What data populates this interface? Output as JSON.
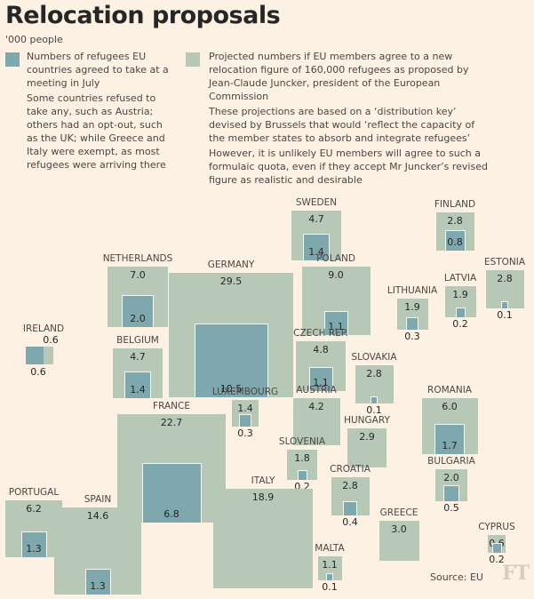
{
  "title": "Relocation proposals",
  "unit": "'000 people",
  "colors": {
    "background": "#fdf1e4",
    "agreed": "#7ea8ad",
    "projected": "#b8c8b7"
  },
  "legend": {
    "agreed": {
      "paragraphs": [
        "Numbers of refugees EU countries agreed to take at a meeting in July",
        "Some countries refused to take any, such as Austria; others had an opt-out, such as the UK; while Greece and Italy were exempt, as most refugees were arriving there"
      ]
    },
    "projected": {
      "paragraphs": [
        "Projected numbers if EU members agree to a new relocation figure of 160,000 refugees as proposed by Jean-Claude Juncker, president of the European Commission",
        "These projections are based on a ‘distribution key’ devised by Brussels that would ‘reflect the capacity of the member states to absorb and integrate refugees’",
        "However, it is unlikely EU members will agree to such a formulaic quota, even if they accept Mr Juncker’s revised figure as realistic and desirable"
      ]
    }
  },
  "source": "Source: EU",
  "logo": "FT",
  "chart_data": {
    "type": "proportional-square-map",
    "title": "Relocation proposals",
    "unit": "'000 people",
    "series": [
      {
        "name": "Agreed in July",
        "key": "agreed"
      },
      {
        "name": "Projected (160,000 proposal)",
        "key": "projected"
      }
    ],
    "countries": [
      {
        "name": "SWEDEN",
        "projected": 4.7,
        "agreed": 1.4
      },
      {
        "name": "FINLAND",
        "projected": 2.8,
        "agreed": 0.8
      },
      {
        "name": "NETHERLANDS",
        "projected": 7.0,
        "agreed": 2.0
      },
      {
        "name": "GERMANY",
        "projected": 29.5,
        "agreed": 10.5
      },
      {
        "name": "POLAND",
        "projected": 9.0,
        "agreed": 1.1
      },
      {
        "name": "LITHUANIA",
        "projected": 1.9,
        "agreed": 0.3
      },
      {
        "name": "LATVIA",
        "projected": 1.9,
        "agreed": 0.2
      },
      {
        "name": "ESTONIA",
        "projected": 2.8,
        "agreed": 0.1
      },
      {
        "name": "IRELAND",
        "projected": 0.6,
        "agreed": 0.6
      },
      {
        "name": "BELGIUM",
        "projected": 4.7,
        "agreed": 1.4
      },
      {
        "name": "CZECH REP.",
        "projected": 4.8,
        "agreed": 1.1
      },
      {
        "name": "SLOVAKIA",
        "projected": 2.8,
        "agreed": 0.1
      },
      {
        "name": "LUXEMBOURG",
        "projected": 1.4,
        "agreed": 0.3
      },
      {
        "name": "AUSTRIA",
        "projected": 4.2,
        "agreed": null
      },
      {
        "name": "ROMANIA",
        "projected": 6.0,
        "agreed": 1.7
      },
      {
        "name": "FRANCE",
        "projected": 22.7,
        "agreed": 6.8
      },
      {
        "name": "HUNGARY",
        "projected": 2.9,
        "agreed": null
      },
      {
        "name": "SLOVENIA",
        "projected": 1.8,
        "agreed": 0.2
      },
      {
        "name": "BULGARIA",
        "projected": 2.0,
        "agreed": 0.5
      },
      {
        "name": "CROATIA",
        "projected": 2.8,
        "agreed": 0.4
      },
      {
        "name": "PORTUGAL",
        "projected": 6.2,
        "agreed": 1.3
      },
      {
        "name": "SPAIN",
        "projected": 14.6,
        "agreed": 1.3
      },
      {
        "name": "ITALY",
        "projected": 18.9,
        "agreed": null
      },
      {
        "name": "GREECE",
        "projected": 3.0,
        "agreed": null
      },
      {
        "name": "CYPRUS",
        "projected": 0.6,
        "agreed": 0.2
      },
      {
        "name": "MALTA",
        "projected": 1.1,
        "agreed": 0.1
      }
    ]
  }
}
